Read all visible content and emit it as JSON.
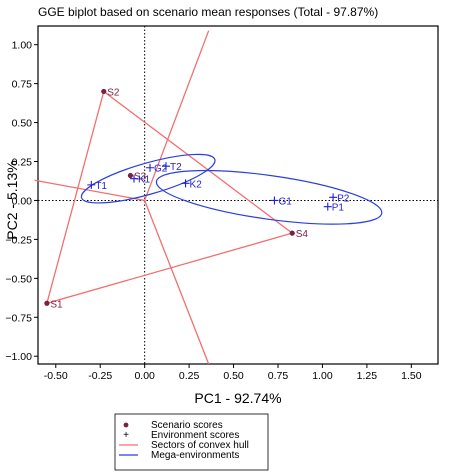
{
  "colors": {
    "scenario": "#7a1f46",
    "environment": "#1f1fd6",
    "hull": "#f07070",
    "mega": "#2a3fe0",
    "reference": "#000000"
  },
  "chart_data": {
    "type": "scatter",
    "title": "GGE biplot based on scenario mean responses  (Total - 97.87%)",
    "xlabel": "PC1 - 92.74%",
    "ylabel": "PC2 - 5.13%",
    "xlim": [
      -0.6,
      1.65
    ],
    "ylim": [
      -1.05,
      1.12
    ],
    "xticks": [
      -0.5,
      -0.25,
      0.0,
      0.25,
      0.5,
      0.75,
      1.0,
      1.25,
      1.5
    ],
    "xtick_labels": [
      "-0.50",
      "-0.25",
      "0.00",
      "0.25",
      "0.50",
      "0.75",
      "1.00",
      "1.25",
      "1.50"
    ],
    "yticks": [
      1.0,
      0.75,
      0.5,
      0.25,
      0.0,
      -0.25,
      -0.5,
      -0.75,
      -1.0
    ],
    "ytick_labels": [
      "1.00",
      "0.75",
      "0.50",
      "0.25",
      "0.00",
      "−0.25",
      "−0.50",
      "−0.75",
      "−1.00"
    ],
    "grid": false,
    "scenario_scores": [
      {
        "label": "S1",
        "x": -0.55,
        "y": -0.66
      },
      {
        "label": "S2",
        "x": -0.23,
        "y": 0.7
      },
      {
        "label": "S3",
        "x": -0.08,
        "y": 0.16
      },
      {
        "label": "S4",
        "x": 0.83,
        "y": -0.21
      }
    ],
    "environment_scores": [
      {
        "label": "T1",
        "x": -0.3,
        "y": 0.1
      },
      {
        "label": "K1",
        "x": -0.06,
        "y": 0.14
      },
      {
        "label": "G2",
        "x": 0.03,
        "y": 0.21
      },
      {
        "label": "T2",
        "x": 0.12,
        "y": 0.22
      },
      {
        "label": "K2",
        "x": 0.23,
        "y": 0.11
      },
      {
        "label": "G1",
        "x": 0.73,
        "y": 0.0
      },
      {
        "label": "P2",
        "x": 1.06,
        "y": 0.02
      },
      {
        "label": "P1",
        "x": 1.03,
        "y": -0.04
      }
    ],
    "hull_vertices": [
      {
        "x": -0.55,
        "y": -0.66
      },
      {
        "x": -0.23,
        "y": 0.7
      },
      {
        "x": 0.83,
        "y": -0.21
      }
    ],
    "hull_rays_end": [
      {
        "x": 0.36,
        "y": 1.09
      },
      {
        "x": -0.62,
        "y": 0.13
      },
      {
        "x": 0.36,
        "y": -1.05
      }
    ],
    "mega_environments": [
      {
        "cx": 0.02,
        "cy": 0.14,
        "rx": 0.39,
        "ry": 0.1,
        "angle_deg": 16
      },
      {
        "cx": 0.7,
        "cy": 0.02,
        "rx": 0.64,
        "ry": 0.14,
        "angle_deg": -8
      }
    ],
    "legend": {
      "placement": "bottom-left",
      "entries": [
        {
          "symbol": "dot",
          "label": "Scenario scores"
        },
        {
          "symbol": "plus",
          "label": "Environment scores"
        },
        {
          "symbol": "red-line",
          "label": "Sectors of convex hull"
        },
        {
          "symbol": "blue-line",
          "label": "Mega-environments"
        }
      ]
    }
  }
}
